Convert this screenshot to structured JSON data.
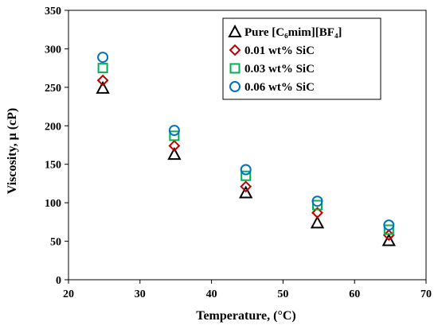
{
  "chart_data": {
    "type": "scatter",
    "title": "",
    "xlabel": "Temperature, (°C)",
    "ylabel": "Viscosity, μ (cP)",
    "xlim": [
      20,
      70
    ],
    "ylim": [
      0,
      350
    ],
    "xticks": [
      "20",
      "30",
      "40",
      "50",
      "60",
      "70"
    ],
    "yticks": [
      "0",
      "50",
      "100",
      "150",
      "200",
      "250",
      "300",
      "350"
    ],
    "grid": false,
    "legend_position": "top-right",
    "series": [
      {
        "name": "Pure [C₆mim][BF₄]",
        "marker": "triangle",
        "color": "#000000",
        "x": [
          24.8,
          34.8,
          44.8,
          54.8,
          64.8
        ],
        "y": [
          249,
          163,
          113,
          74,
          51
        ]
      },
      {
        "name": "0.01 wt% SiC",
        "marker": "diamond",
        "color": "#C00000",
        "x": [
          24.8,
          34.8,
          44.8,
          54.8,
          64.8
        ],
        "y": [
          259,
          174,
          121,
          87,
          58
        ]
      },
      {
        "name": "0.03 wt% SiC",
        "marker": "square",
        "color": "#00B050",
        "x": [
          24.8,
          34.8,
          44.8,
          54.8,
          64.8
        ],
        "y": [
          275,
          187,
          135,
          97,
          65
        ]
      },
      {
        "name": "0.06 wt% SiC",
        "marker": "circle",
        "color": "#0070C0",
        "x": [
          24.8,
          34.8,
          44.8,
          54.8,
          64.8
        ],
        "y": [
          289,
          194,
          143,
          102,
          71
        ]
      }
    ]
  }
}
